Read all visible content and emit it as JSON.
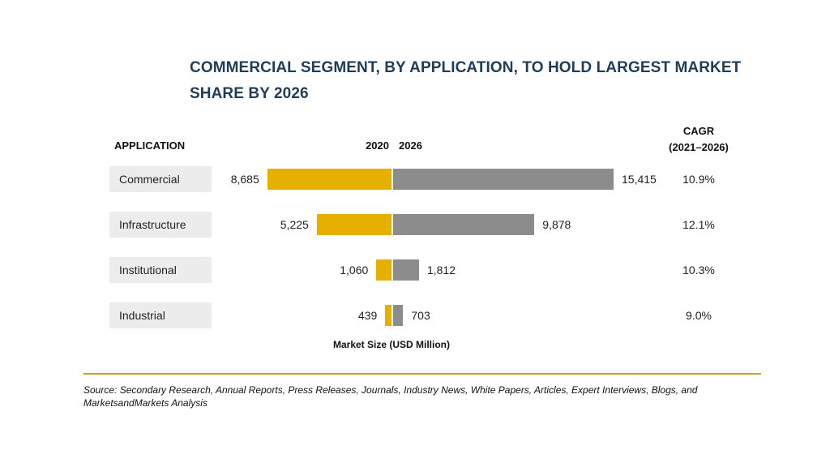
{
  "title": "COMMERCIAL SEGMENT, BY APPLICATION, TO HOLD LARGEST MARKET SHARE BY 2026",
  "headers": {
    "application": "APPLICATION",
    "year_a": "2020",
    "year_b": "2026",
    "cagr_line1": "CAGR",
    "cagr_line2": "(2021–2026)"
  },
  "x_label": "Market Size (USD Million)",
  "source": "Source: Secondary Research, Annual Reports, Press Releases, Journals, Industry News, White Papers, Articles, Expert Interviews, Blogs, and MarketsandMarkets Analysis",
  "colors": {
    "series_2020": "#e6b000",
    "series_2026": "#8c8c8c",
    "title": "#1f3d57",
    "rule": "#c9a227"
  },
  "chart_data": {
    "type": "bar",
    "title": "COMMERCIAL SEGMENT, BY APPLICATION, TO HOLD LARGEST MARKET SHARE BY 2026",
    "xlabel": "Market Size (USD Million)",
    "categories": [
      "Commercial",
      "Infrastructure",
      "Institutional",
      "Industrial"
    ],
    "series": [
      {
        "name": "2020",
        "values": [
          8685,
          5225,
          1060,
          439
        ],
        "labels": [
          "8,685",
          "5,225",
          "1,060",
          "439"
        ]
      },
      {
        "name": "2026",
        "values": [
          15415,
          9878,
          1812,
          703
        ],
        "labels": [
          "15,415",
          "9,878",
          "1,812",
          "703"
        ]
      }
    ],
    "cagr": [
      "10.9%",
      "12.1%",
      "10.3%",
      "9.0%"
    ]
  }
}
